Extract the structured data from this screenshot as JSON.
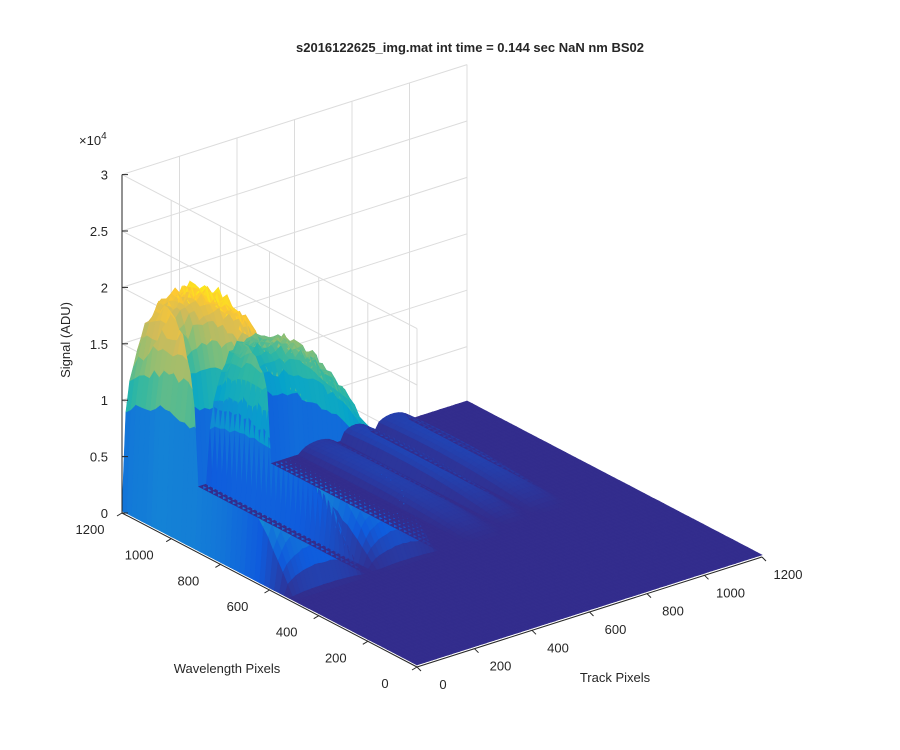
{
  "chart_data": {
    "type": "surface",
    "title": "s2016122625_img.mat int time = 0.144 sec  NaN nm BS02",
    "xlabel": "Track Pixels",
    "ylabel": "Wavelength Pixels",
    "zlabel": "Signal (ADU)",
    "z_exponent_label": "×10",
    "z_exponent_power": "4",
    "xlim": [
      0,
      1200
    ],
    "ylim": [
      0,
      1200
    ],
    "zlim": [
      0,
      30000
    ],
    "x_ticks": [
      "0",
      "200",
      "400",
      "600",
      "800",
      "1000",
      "1200"
    ],
    "y_ticks": [
      "0",
      "200",
      "400",
      "600",
      "800",
      "1000",
      "1200"
    ],
    "z_ticks": [
      "0",
      "0.5",
      "1",
      "1.5",
      "2",
      "2.5",
      "3"
    ],
    "grid": true,
    "colormap": "parula",
    "colors": [
      "#352a87",
      "#0f5cdd",
      "#1481d6",
      "#06a4ca",
      "#2eb7a4",
      "#87bf77",
      "#d1bb59",
      "#fec832",
      "#f9fb0e"
    ],
    "bands": [
      {
        "track_range": [
          0,
          260
        ],
        "peak_signal": 21500,
        "peak_wavelength_pixel": 1000
      },
      {
        "track_range": [
          300,
          520
        ],
        "peak_signal": 14500,
        "peak_wavelength_pixel": 1000
      },
      {
        "track_range": [
          620,
          740
        ],
        "peak_signal": 1200,
        "peak_wavelength_pixel": 950
      },
      {
        "track_range": [
          760,
          860
        ],
        "peak_signal": 1500,
        "peak_wavelength_pixel": 1000
      },
      {
        "track_range": [
          880,
          1000
        ],
        "peak_signal": 1400,
        "peak_wavelength_pixel": 1000
      }
    ]
  }
}
